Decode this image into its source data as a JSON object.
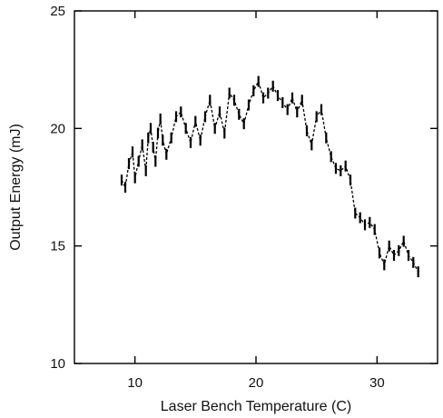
{
  "chart_data": {
    "type": "scatter",
    "title": "",
    "xlabel": "Laser Bench Temperature (C)",
    "ylabel": "Output Energy (mJ)",
    "xlim": [
      5,
      35
    ],
    "ylim": [
      10,
      25
    ],
    "xticks": [
      10,
      20,
      30
    ],
    "yticks": [
      10,
      15,
      20,
      25
    ],
    "grid": false,
    "series": [
      {
        "x": [
          8.9,
          9.2,
          9.5,
          9.8,
          10.0,
          10.3,
          10.6,
          10.9,
          11.1,
          11.3,
          11.5,
          11.7,
          11.9,
          12.1,
          12.3,
          12.6,
          13.0,
          13.4,
          13.8,
          14.2,
          14.6,
          15.0,
          15.4,
          15.8,
          16.2,
          16.6,
          17.0,
          17.4,
          17.8,
          18.2,
          18.6,
          19.0,
          19.4,
          19.8,
          20.2,
          20.6,
          21.0,
          21.4,
          21.8,
          22.2,
          22.6,
          23.0,
          23.4,
          23.8,
          24.2,
          24.6,
          25.0,
          25.4,
          25.8,
          26.2,
          26.6,
          27.0,
          27.4,
          27.8,
          28.2,
          28.6,
          29.0,
          29.4,
          29.8,
          30.2,
          30.6,
          31.0,
          31.4,
          31.8,
          32.2,
          32.6,
          33.0,
          33.4
        ],
        "y": [
          17.8,
          17.5,
          18.5,
          19.0,
          17.9,
          18.6,
          19.3,
          18.2,
          19.6,
          20.0,
          19.2,
          18.6,
          19.8,
          20.4,
          19.5,
          18.9,
          19.6,
          20.5,
          20.7,
          20.0,
          19.4,
          20.3,
          19.5,
          20.5,
          21.2,
          20.0,
          20.7,
          19.8,
          21.5,
          21.2,
          20.6,
          20.2,
          21.0,
          21.6,
          22.0,
          21.3,
          21.5,
          21.8,
          21.4,
          21.1,
          20.8,
          21.3,
          20.7,
          21.2,
          19.9,
          19.3,
          20.5,
          20.8,
          19.6,
          18.8,
          18.3,
          18.2,
          18.4,
          17.8,
          16.4,
          16.2,
          15.9,
          16.0,
          15.7,
          14.7,
          14.2,
          15.0,
          14.6,
          14.8,
          15.2,
          14.6,
          14.3,
          13.9
        ]
      }
    ]
  }
}
